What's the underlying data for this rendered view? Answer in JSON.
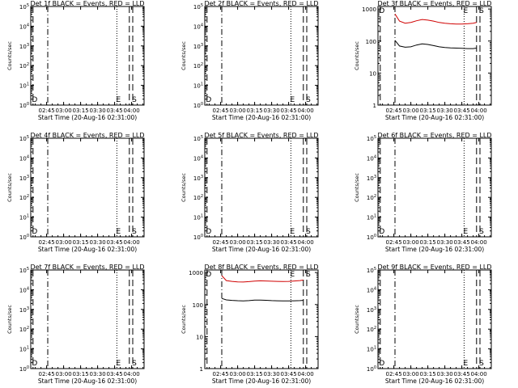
{
  "figure": {
    "background": "#ffffff",
    "foreground": "#000000",
    "events_color": "#000000",
    "lld_color": "#d00000"
  },
  "chart_data": [
    {
      "type": "line",
      "title": "Det 1f BLACK = Events, RED = LLD",
      "ylabel": "Counts/sec",
      "xlabel": "Start Time (20-Aug-16 02:31:00)",
      "ylog": true,
      "ytick_labels": [
        "10^0",
        "10^1",
        "10^2",
        "10^3",
        "10^4",
        "10^5"
      ],
      "ylim": [
        1,
        100000
      ],
      "xticks": [
        "02:45",
        "03:00",
        "03:15",
        "03:30",
        "03:45",
        "04:00"
      ],
      "markers": [
        {
          "time": "02:33",
          "label": "D",
          "style": "dashed"
        },
        {
          "time": "02:46",
          "style": "dashdot"
        },
        {
          "time": "03:47",
          "label": "E",
          "style": "dotted"
        },
        {
          "time": "03:58",
          "style": "dashed"
        },
        {
          "time": "04:01",
          "label": "S",
          "style": "dashed"
        }
      ],
      "series": []
    },
    {
      "type": "line",
      "title": "Det 2f BLACK = Events, RED = LLD",
      "ylabel": "Counts/sec",
      "xlabel": "Start Time (20-Aug-16 02:31:00)",
      "ylog": true,
      "ytick_labels": [
        "10^0",
        "10^1",
        "10^2",
        "10^3",
        "10^4",
        "10^5"
      ],
      "ylim": [
        1,
        100000
      ],
      "xticks": [
        "02:45",
        "03:00",
        "03:15",
        "03:30",
        "03:45",
        "04:00"
      ],
      "markers": [
        {
          "time": "02:33",
          "label": "D",
          "style": "dashed"
        },
        {
          "time": "02:46",
          "style": "dashdot"
        },
        {
          "time": "03:47",
          "label": "E",
          "style": "dotted"
        },
        {
          "time": "03:58",
          "style": "dashed"
        },
        {
          "time": "04:01",
          "label": "S",
          "style": "dashed"
        }
      ],
      "series": []
    },
    {
      "type": "line",
      "title": "Det 3f BLACK = Events, RED = LLD",
      "ylabel": "Counts/sec",
      "xlabel": "Start Time (20-Aug-16 02:31:00)",
      "ylog": true,
      "ytick_labels": [
        "1",
        "10",
        "100",
        "1000"
      ],
      "ylim": [
        1,
        1200
      ],
      "xticks": [
        "02:45",
        "03:00",
        "03:15",
        "03:30",
        "03:45",
        "04:00"
      ],
      "markers": [
        {
          "time": "02:33",
          "label": "D",
          "style": "dashed"
        },
        {
          "time": "02:46",
          "style": "dashdot"
        },
        {
          "time": "03:47",
          "label": "E",
          "style": "dotted"
        },
        {
          "time": "03:58",
          "style": "dashed"
        },
        {
          "time": "04:01",
          "label": "S",
          "style": "dashed"
        }
      ],
      "series": [
        {
          "color": "#d00000",
          "t": [
            "02:46",
            "02:50",
            "02:55",
            "03:00",
            "03:05",
            "03:10",
            "03:15",
            "03:20",
            "03:25",
            "03:30",
            "03:35",
            "03:40",
            "03:45",
            "03:50",
            "03:55",
            "03:58"
          ],
          "v": [
            700,
            420,
            360,
            380,
            430,
            470,
            450,
            420,
            380,
            360,
            345,
            340,
            340,
            345,
            360,
            380
          ]
        },
        {
          "color": "#000000",
          "t": [
            "02:46",
            "02:50",
            "02:55",
            "03:00",
            "03:05",
            "03:10",
            "03:15",
            "03:20",
            "03:25",
            "03:30",
            "03:35",
            "03:40",
            "03:45",
            "03:50",
            "03:55",
            "03:58"
          ],
          "v": [
            105,
            70,
            64,
            66,
            75,
            82,
            78,
            72,
            66,
            63,
            61,
            60,
            59,
            58,
            58,
            60
          ]
        }
      ]
    },
    {
      "type": "line",
      "title": "Det 4f BLACK = Events, RED = LLD",
      "ylabel": "Counts/sec",
      "xlabel": "Start Time (20-Aug-16 02:31:00)",
      "ylog": true,
      "ytick_labels": [
        "10^0",
        "10^1",
        "10^2",
        "10^3",
        "10^4",
        "10^5"
      ],
      "ylim": [
        1,
        100000
      ],
      "xticks": [
        "02:45",
        "03:00",
        "03:15",
        "03:30",
        "03:45",
        "04:00"
      ],
      "markers": [
        {
          "time": "02:33",
          "label": "D",
          "style": "dashed"
        },
        {
          "time": "02:46",
          "style": "dashdot"
        },
        {
          "time": "03:47",
          "label": "E",
          "style": "dotted"
        },
        {
          "time": "03:58",
          "style": "dashed"
        },
        {
          "time": "04:01",
          "label": "S",
          "style": "dashed"
        }
      ],
      "series": []
    },
    {
      "type": "line",
      "title": "Det 5f BLACK = Events, RED = LLD",
      "ylabel": "Counts/sec",
      "xlabel": "Start Time (20-Aug-16 02:31:00)",
      "ylog": true,
      "ytick_labels": [
        "10^0",
        "10^1",
        "10^2",
        "10^3",
        "10^4",
        "10^5"
      ],
      "ylim": [
        1,
        100000
      ],
      "xticks": [
        "02:45",
        "03:00",
        "03:15",
        "03:30",
        "03:45",
        "04:00"
      ],
      "markers": [
        {
          "time": "02:33",
          "label": "D",
          "style": "dashed"
        },
        {
          "time": "02:46",
          "style": "dashdot"
        },
        {
          "time": "03:47",
          "label": "E",
          "style": "dotted"
        },
        {
          "time": "03:58",
          "style": "dashed"
        },
        {
          "time": "04:01",
          "label": "S",
          "style": "dashed"
        }
      ],
      "series": []
    },
    {
      "type": "line",
      "title": "Det 6f BLACK = Events, RED = LLD",
      "ylabel": "Counts/sec",
      "xlabel": "Start Time (20-Aug-16 02:31:00)",
      "ylog": true,
      "ytick_labels": [
        "10^0",
        "10^1",
        "10^2",
        "10^3",
        "10^4",
        "10^5"
      ],
      "ylim": [
        1,
        100000
      ],
      "xticks": [
        "02:45",
        "03:00",
        "03:15",
        "03:30",
        "03:45",
        "04:00"
      ],
      "markers": [
        {
          "time": "02:33",
          "label": "D",
          "style": "dashed"
        },
        {
          "time": "02:46",
          "style": "dashdot"
        },
        {
          "time": "03:47",
          "label": "E",
          "style": "dotted"
        },
        {
          "time": "03:58",
          "style": "dashed"
        },
        {
          "time": "04:01",
          "label": "S",
          "style": "dashed"
        }
      ],
      "series": []
    },
    {
      "type": "line",
      "title": "Det 7f BLACK = Events, RED = LLD",
      "ylabel": "Counts/sec",
      "xlabel": "Start Time (20-Aug-16 02:31:00)",
      "ylog": true,
      "ytick_labels": [
        "10^0",
        "10^1",
        "10^2",
        "10^3",
        "10^4",
        "10^5"
      ],
      "ylim": [
        1,
        100000
      ],
      "xticks": [
        "02:45",
        "03:00",
        "03:15",
        "03:30",
        "03:45",
        "04:00"
      ],
      "markers": [
        {
          "time": "02:33",
          "label": "D",
          "style": "dashed"
        },
        {
          "time": "02:46",
          "style": "dashdot"
        },
        {
          "time": "03:47",
          "label": "E",
          "style": "dotted"
        },
        {
          "time": "03:58",
          "style": "dashed"
        },
        {
          "time": "04:01",
          "label": "S",
          "style": "dashed"
        }
      ],
      "series": []
    },
    {
      "type": "line",
      "title": "Det 8f BLACK = Events, RED = LLD",
      "ylabel": "Counts/sec",
      "xlabel": "Start Time (20-Aug-16 02:31:00)",
      "ylog": true,
      "ytick_labels": [
        "1",
        "10",
        "100",
        "1000"
      ],
      "ylim": [
        1,
        1200
      ],
      "xticks": [
        "02:45",
        "03:00",
        "03:15",
        "03:30",
        "03:45",
        "04:00"
      ],
      "markers": [
        {
          "time": "02:33",
          "label": "D",
          "style": "dashed"
        },
        {
          "time": "02:46",
          "style": "dashdot"
        },
        {
          "time": "03:47",
          "label": "E",
          "style": "dotted"
        },
        {
          "time": "03:58",
          "style": "dashed"
        },
        {
          "time": "04:01",
          "label": "S",
          "style": "dashed"
        }
      ],
      "series": [
        {
          "color": "#d00000",
          "t": [
            "02:46",
            "02:50",
            "02:55",
            "03:00",
            "03:05",
            "03:10",
            "03:15",
            "03:20",
            "03:25",
            "03:30",
            "03:35",
            "03:40",
            "03:45",
            "03:50",
            "03:55",
            "03:58"
          ],
          "v": [
            800,
            560,
            530,
            510,
            505,
            520,
            540,
            550,
            545,
            535,
            530,
            525,
            530,
            545,
            560,
            580
          ]
        },
        {
          "color": "#000000",
          "t": [
            "02:46",
            "02:50",
            "02:55",
            "03:00",
            "03:05",
            "03:10",
            "03:15",
            "03:20",
            "03:25",
            "03:30",
            "03:35",
            "03:40",
            "03:45",
            "03:50",
            "03:55",
            "03:58"
          ],
          "v": [
            155,
            140,
            135,
            132,
            130,
            133,
            137,
            138,
            136,
            133,
            131,
            130,
            130,
            131,
            133,
            135
          ]
        }
      ]
    },
    {
      "type": "line",
      "title": "Det 9f BLACK = Events, RED = LLD",
      "ylabel": "Counts/sec",
      "xlabel": "Start Time (20-Aug-16 02:31:00)",
      "ylog": true,
      "ytick_labels": [
        "10^0",
        "10^1",
        "10^2",
        "10^3",
        "10^4",
        "10^5"
      ],
      "ylim": [
        1,
        100000
      ],
      "xticks": [
        "02:45",
        "03:00",
        "03:15",
        "03:30",
        "03:45",
        "04:00"
      ],
      "markers": [
        {
          "time": "02:33",
          "label": "D",
          "style": "dashed"
        },
        {
          "time": "02:46",
          "style": "dashdot"
        },
        {
          "time": "03:47",
          "label": "E",
          "style": "dotted"
        },
        {
          "time": "03:58",
          "style": "dashed"
        },
        {
          "time": "04:01",
          "label": "S",
          "style": "dashed"
        }
      ],
      "series": []
    }
  ]
}
